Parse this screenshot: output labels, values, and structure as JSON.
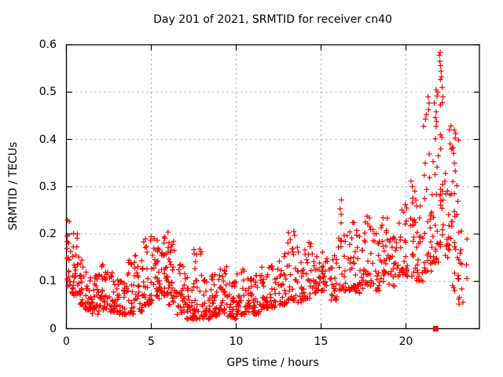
{
  "chart_data": {
    "type": "scatter",
    "title": "Day 201 of 2021, SRMTID for receiver cn40",
    "xlabel": "GPS time / hours",
    "ylabel": "SRMTID / TECUs",
    "xlim": [
      0,
      24.33
    ],
    "ylim": [
      0,
      0.6
    ],
    "xticks": [
      0,
      5,
      10,
      15,
      20
    ],
    "yticks": [
      0,
      0.1,
      0.2,
      0.3,
      0.4,
      0.5,
      0.6
    ],
    "grid": true,
    "marker": "plus",
    "marker_color": "#ff0000",
    "grid_color": "#a8a8a8",
    "axis_color": "#000000",
    "background": "#ffffff",
    "seed": 1337,
    "density_bins_t0_t1_ymin_ymax_n": [
      [
        0.0,
        0.3,
        0.09,
        0.245,
        22
      ],
      [
        0.3,
        0.7,
        0.07,
        0.21,
        28
      ],
      [
        0.7,
        1.0,
        0.05,
        0.165,
        24
      ],
      [
        1.0,
        1.5,
        0.04,
        0.13,
        30
      ],
      [
        1.5,
        2.0,
        0.03,
        0.115,
        30
      ],
      [
        2.0,
        2.5,
        0.04,
        0.135,
        30
      ],
      [
        2.5,
        3.0,
        0.035,
        0.12,
        30
      ],
      [
        3.0,
        3.5,
        0.03,
        0.105,
        28
      ],
      [
        3.5,
        4.0,
        0.03,
        0.15,
        30
      ],
      [
        4.0,
        4.5,
        0.035,
        0.16,
        28
      ],
      [
        4.5,
        5.0,
        0.05,
        0.205,
        30
      ],
      [
        5.0,
        5.5,
        0.06,
        0.2,
        34
      ],
      [
        5.5,
        6.0,
        0.07,
        0.205,
        34
      ],
      [
        6.0,
        6.5,
        0.05,
        0.185,
        30
      ],
      [
        6.5,
        7.0,
        0.03,
        0.145,
        28
      ],
      [
        7.0,
        7.5,
        0.02,
        0.11,
        30
      ],
      [
        7.5,
        8.0,
        0.02,
        0.17,
        30
      ],
      [
        8.0,
        8.5,
        0.02,
        0.105,
        30
      ],
      [
        8.5,
        9.0,
        0.025,
        0.115,
        30
      ],
      [
        9.0,
        9.5,
        0.03,
        0.135,
        30
      ],
      [
        9.5,
        10.0,
        0.02,
        0.1,
        30
      ],
      [
        10.0,
        10.5,
        0.03,
        0.13,
        30
      ],
      [
        10.5,
        11.0,
        0.035,
        0.11,
        28
      ],
      [
        11.0,
        11.5,
        0.03,
        0.115,
        28
      ],
      [
        11.5,
        12.0,
        0.04,
        0.135,
        28
      ],
      [
        12.0,
        12.5,
        0.045,
        0.14,
        26
      ],
      [
        12.5,
        13.0,
        0.05,
        0.165,
        26
      ],
      [
        13.0,
        13.5,
        0.06,
        0.21,
        26
      ],
      [
        13.5,
        14.0,
        0.055,
        0.175,
        26
      ],
      [
        14.0,
        14.5,
        0.06,
        0.185,
        24
      ],
      [
        14.5,
        15.0,
        0.075,
        0.16,
        24
      ],
      [
        15.0,
        15.5,
        0.08,
        0.17,
        24
      ],
      [
        15.5,
        16.0,
        0.06,
        0.155,
        24
      ],
      [
        16.0,
        16.5,
        0.08,
        0.275,
        26
      ],
      [
        16.5,
        17.0,
        0.08,
        0.235,
        26
      ],
      [
        17.0,
        17.5,
        0.075,
        0.215,
        26
      ],
      [
        17.5,
        18.0,
        0.09,
        0.24,
        26
      ],
      [
        18.0,
        18.5,
        0.08,
        0.215,
        24
      ],
      [
        18.5,
        19.0,
        0.095,
        0.245,
        24
      ],
      [
        19.0,
        19.5,
        0.09,
        0.195,
        24
      ],
      [
        19.5,
        20.0,
        0.11,
        0.27,
        24
      ],
      [
        20.0,
        20.5,
        0.11,
        0.315,
        26
      ],
      [
        20.5,
        21.0,
        0.1,
        0.295,
        26
      ],
      [
        21.0,
        21.5,
        0.12,
        0.46,
        28
      ],
      [
        21.5,
        22.0,
        0.14,
        0.52,
        30
      ],
      [
        22.0,
        22.3,
        0.17,
        0.54,
        22
      ],
      [
        22.3,
        22.7,
        0.15,
        0.46,
        24
      ],
      [
        22.7,
        23.1,
        0.08,
        0.42,
        24
      ],
      [
        23.1,
        23.6,
        0.05,
        0.22,
        16
      ]
    ],
    "peak_points": [
      [
        21.97,
        0.578
      ],
      [
        22.02,
        0.584
      ],
      [
        22.0,
        0.565
      ],
      [
        22.04,
        0.556
      ],
      [
        22.07,
        0.544
      ],
      [
        22.1,
        0.532
      ],
      [
        21.78,
        0.505
      ],
      [
        21.83,
        0.492
      ],
      [
        21.88,
        0.5
      ],
      [
        22.14,
        0.51
      ],
      [
        22.18,
        0.49
      ],
      [
        21.3,
        0.49
      ],
      [
        21.36,
        0.477
      ],
      [
        21.33,
        0.463
      ],
      [
        22.85,
        0.42
      ],
      [
        22.9,
        0.403
      ],
      [
        22.93,
        0.412
      ],
      [
        16.2,
        0.272
      ],
      [
        20.3,
        0.312
      ]
    ],
    "axis_marker_point": {
      "x": 21.75,
      "y": 0,
      "marker": "filled-square"
    }
  }
}
